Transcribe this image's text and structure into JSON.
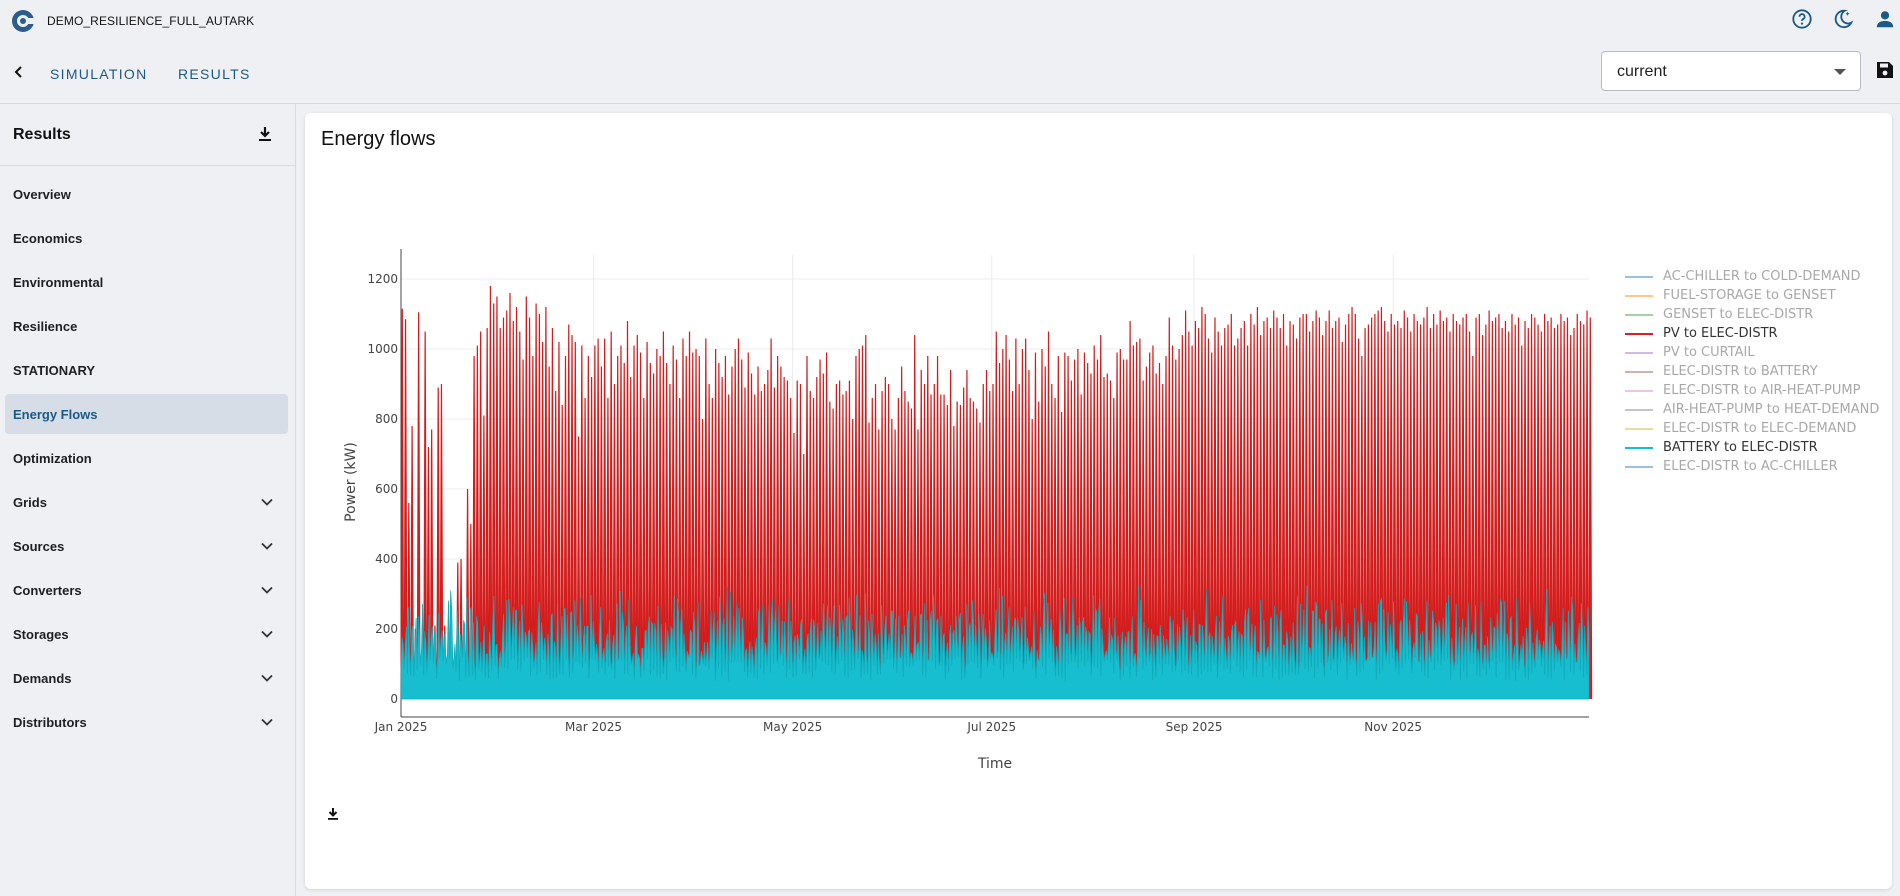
{
  "app": {
    "title": "DEMO_RESILIENCE_FULL_AUTARK"
  },
  "nav": {
    "links": [
      "SIMULATION",
      "RESULTS"
    ],
    "scenario_select": {
      "value": "current"
    }
  },
  "sidebar": {
    "title": "Results",
    "items": [
      {
        "label": "Overview",
        "expandable": false
      },
      {
        "label": "Economics",
        "expandable": false
      },
      {
        "label": "Environmental",
        "expandable": false
      },
      {
        "label": "Resilience",
        "expandable": false
      },
      {
        "label": "STATIONARY",
        "expandable": false
      },
      {
        "label": "Energy Flows",
        "expandable": false,
        "active": true
      },
      {
        "label": "Optimization",
        "expandable": false
      },
      {
        "label": "Grids",
        "expandable": true
      },
      {
        "label": "Sources",
        "expandable": true
      },
      {
        "label": "Converters",
        "expandable": true
      },
      {
        "label": "Storages",
        "expandable": true
      },
      {
        "label": "Demands",
        "expandable": true
      },
      {
        "label": "Distributors",
        "expandable": true
      }
    ]
  },
  "main": {
    "title": "Energy flows"
  },
  "icons": {
    "help": "help-circle-icon",
    "theme": "theme-toggle-icon",
    "account": "account-icon",
    "save": "save-icon",
    "download": "download-icon",
    "back": "chevron-left-icon"
  },
  "colors": {
    "accent": "#1c5a86",
    "pv": "#e02020",
    "battery": "#17becf"
  },
  "chart_data": {
    "type": "line",
    "xlabel": "Time",
    "ylabel": "Power (kW)",
    "ylim": [
      0,
      1240
    ],
    "xlim": [
      "2025-01-01",
      "2025-12-31"
    ],
    "x_ticks": [
      "Jan 2025",
      "Mar 2025",
      "May 2025",
      "Jul 2025",
      "Sep 2025",
      "Nov 2025"
    ],
    "y_ticks": [
      0,
      200,
      400,
      600,
      800,
      1000,
      1200
    ],
    "grid": true,
    "legend_position": "right",
    "series": [
      {
        "name": "AC-CHILLER to COLD-DEMAND",
        "color": "#1f77b4",
        "visible": false
      },
      {
        "name": "FUEL-STORAGE to GENSET",
        "color": "#ff7f0e",
        "visible": false
      },
      {
        "name": "GENSET to ELEC-DISTR",
        "color": "#2ca02c",
        "visible": false
      },
      {
        "name": "PV to ELEC-DISTR",
        "color": "#e02020",
        "visible": true,
        "daily_peak_kw": [
          1115,
          1085,
          560,
          780,
          200,
          1105,
          130,
          1050,
          720,
          770,
          210,
          890,
          900,
          210,
          60,
          80,
          120,
          390,
          400,
          190,
          600,
          500,
          980,
          1010,
          1050,
          810,
          1060,
          1180,
          1130,
          1150,
          1060,
          1090,
          1110,
          1160,
          1080,
          1120,
          1050,
          970,
          1150,
          1090,
          980,
          1130,
          1100,
          1020,
          1120,
          950,
          1060,
          880,
          1020,
          840,
          980,
          1070,
          1040,
          1020,
          750,
          1010,
          860,
          980,
          920,
          1010,
          1030,
          950,
          1030,
          860,
          1050,
          900,
          980,
          1010,
          960,
          1080,
          920,
          1010,
          1040,
          990,
          860,
          1020,
          960,
          930,
          1000,
          980,
          1050,
          960,
          900,
          1010,
          970,
          860,
          1030,
          980,
          1050,
          990,
          1000,
          980,
          800,
          1030,
          900,
          860,
          1000,
          960,
          920,
          980,
          870,
          950,
          1000,
          1030,
          970,
          890,
          990,
          930,
          870,
          950,
          880,
          900,
          940,
          1030,
          890,
          980,
          950,
          920,
          910,
          860,
          760,
          910,
          900,
          700,
          980,
          880,
          860,
          920,
          970,
          930,
          990,
          850,
          830,
          900,
          910,
          870,
          880,
          910,
          800,
          980,
          1000,
          1010,
          1040,
          790,
          860,
          900,
          770,
          880,
          920,
          900,
          800,
          770,
          860,
          950,
          880,
          850,
          830,
          1040,
          770,
          940,
          900,
          980,
          870,
          900,
          980,
          870,
          870,
          840,
          940,
          780,
          850,
          840,
          890,
          940,
          860,
          850,
          830,
          790,
          900,
          940,
          880,
          900,
          1050,
          960,
          1000,
          1040,
          970,
          880,
          1030,
          900,
          1000,
          1030,
          940,
          800,
          990,
          850,
          1000,
          950,
          1050,
          900,
          860,
          980,
          820,
          990,
          980,
          910,
          970,
          1000,
          870,
          990,
          960,
          930,
          1010,
          970,
          1040,
          920,
          930,
          910,
          860,
          990,
          1000,
          970,
          970,
          1080,
          1010,
          1020,
          1030,
          910,
          950,
          990,
          1010,
          930,
          960,
          900,
          980,
          1090,
          1010,
          970,
          1000,
          1040,
          1110,
          1050,
          1010,
          1080,
          1060,
          1120,
          1100,
          1030,
          990,
          1090,
          1050,
          1010,
          1060,
          1070,
          1100,
          1010,
          1030,
          1060,
          1080,
          1010,
          1100,
          1070,
          1120,
          1040,
          1080,
          1090,
          1060,
          1110,
          1090,
          1060,
          1100,
          1010,
          1080,
          1070,
          1030,
          1090,
          1100,
          1100,
          1050,
          1080,
          1110,
          1090,
          1040,
          1080,
          1110,
          1060,
          1080,
          1090,
          1020,
          1070,
          1100,
          1120,
          1100,
          1030,
          980,
          1060,
          1070,
          1090,
          1100,
          1110,
          1120,
          1080,
          1050,
          1100,
          1070,
          1080,
          1060,
          1110,
          1090,
          1050,
          1100,
          1080,
          1070,
          1090,
          1120,
          1060,
          1100,
          1070,
          1110,
          1080,
          1090,
          1050,
          1100,
          1080,
          1070,
          1090,
          1100,
          1050,
          980,
          1090,
          1100,
          1040,
          1070,
          1110,
          1080,
          1090,
          1100,
          1060,
          1080,
          1050,
          1100,
          1070,
          1090,
          1010,
          1080,
          1060,
          1100,
          1090,
          1070,
          1050,
          1100,
          1080,
          1090,
          1060,
          1070,
          1100,
          1080,
          1090,
          1040,
          1060,
          1100,
          1080,
          1070,
          1110,
          1090,
          1050,
          1080,
          1100,
          1090,
          820
        ]
      },
      {
        "name": "PV to CURTAIL",
        "color": "#9467bd",
        "visible": false
      },
      {
        "name": "ELEC-DISTR to BATTERY",
        "color": "#8c564b",
        "visible": false
      },
      {
        "name": "ELEC-DISTR to AIR-HEAT-PUMP",
        "color": "#e377c2",
        "visible": false
      },
      {
        "name": "AIR-HEAT-PUMP to HEAT-DEMAND",
        "color": "#7f7f7f",
        "visible": false
      },
      {
        "name": "ELEC-DISTR to ELEC-DEMAND",
        "color": "#bcbd22",
        "visible": false
      },
      {
        "name": "BATTERY to ELEC-DISTR",
        "color": "#17becf",
        "visible": true,
        "typical_range_kw": [
          60,
          410
        ]
      },
      {
        "name": "ELEC-DISTR to AC-CHILLER",
        "color": "#1f77b4",
        "visible": false
      }
    ]
  }
}
